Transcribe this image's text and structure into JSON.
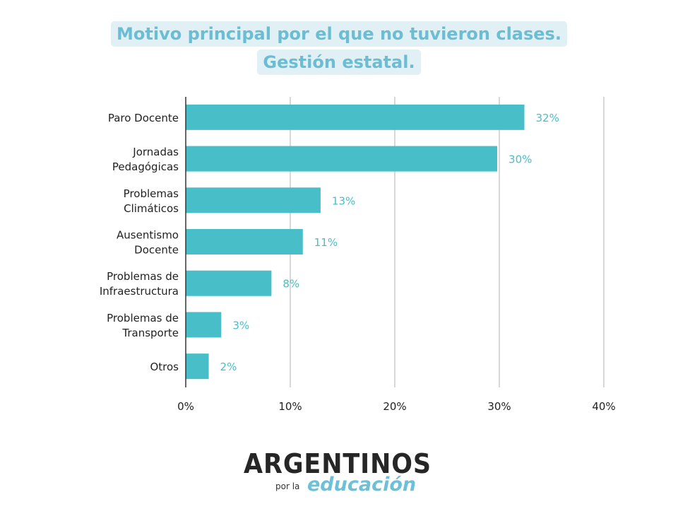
{
  "chart_data": {
    "type": "bar",
    "orientation": "horizontal",
    "title": "Motivo principal por el que no tuvieron clases.",
    "subtitle": "Gestión estatal.",
    "categories": [
      [
        "Paro Docente"
      ],
      [
        "Jornadas",
        "Pedagógicas"
      ],
      [
        "Problemas",
        "Climáticos"
      ],
      [
        "Ausentismo",
        "Docente"
      ],
      [
        "Problemas de",
        "Infraestructura"
      ],
      [
        "Problemas de",
        "Transporte"
      ],
      [
        "Otros"
      ]
    ],
    "values": [
      32.4,
      29.8,
      12.9,
      11.2,
      8.2,
      3.4,
      2.2
    ],
    "data_labels": [
      "32%",
      "30%",
      "13%",
      "11%",
      "8%",
      "3%",
      "2%"
    ],
    "xlim": [
      0,
      40
    ],
    "x_ticks": [
      "0%",
      "10%",
      "20%",
      "30%",
      "40%"
    ],
    "xlabel": "",
    "ylabel": "",
    "grid": "vertical",
    "colors": {
      "bar": "#47bec8",
      "label": "#4bbdc8",
      "title": "#6bbdd3",
      "title_bg": "#e1f0f5",
      "grid": "#cccccc"
    }
  },
  "logo": {
    "main": "ARGENTINOS",
    "por": "por la",
    "edu": "educación"
  }
}
